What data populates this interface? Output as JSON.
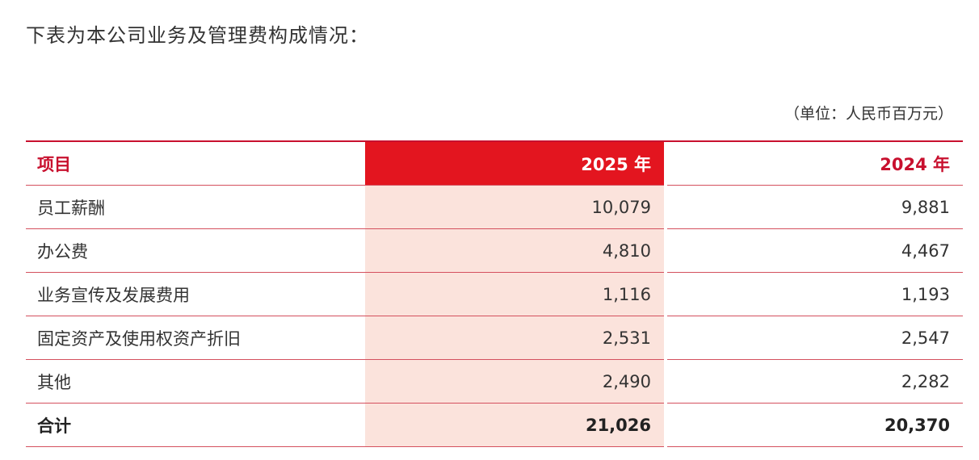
{
  "header": {
    "title": "下表为本公司业务及管理费构成情况：",
    "unit": "（单位：人民币百万元）"
  },
  "table": {
    "columns": [
      "项目",
      "2025 年",
      "2024 年"
    ],
    "rows": [
      [
        "员工薪酬",
        "10,079",
        "9,881"
      ],
      [
        "办公费",
        "4,810",
        "4,467"
      ],
      [
        "业务宣传及发展费用",
        "1,116",
        "1,193"
      ],
      [
        "固定资产及使用权资产折旧",
        "2,531",
        "2,547"
      ],
      [
        "其他",
        "2,490",
        "2,282"
      ],
      [
        "合计",
        "21,026",
        "20,370"
      ]
    ]
  }
}
